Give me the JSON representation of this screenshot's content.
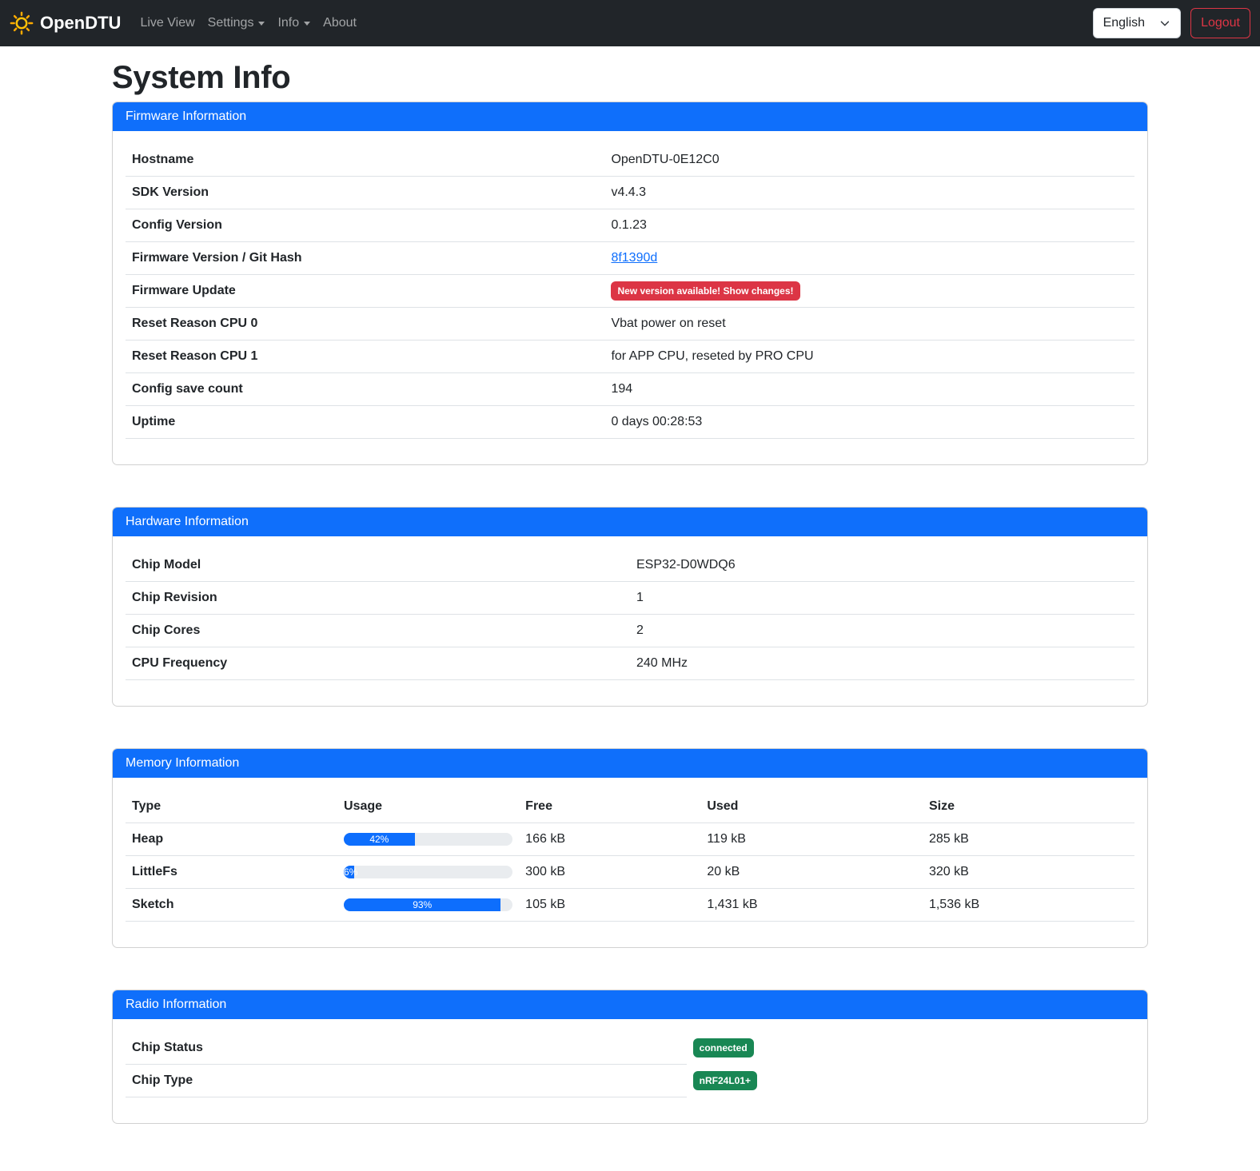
{
  "colors": {
    "primary": "#0f6ffb",
    "progress_fill": "#0d6efd",
    "danger": "#dc3545",
    "success": "#198754",
    "navbar_bg": "#212529",
    "brand_icon_color": "#ffc107"
  },
  "navbar": {
    "brand": "OpenDTU",
    "brand_icon": "sun-icon",
    "items": [
      {
        "label": "Live View",
        "dropdown": false
      },
      {
        "label": "Settings",
        "dropdown": true
      },
      {
        "label": "Info",
        "dropdown": true
      },
      {
        "label": "About",
        "dropdown": false
      }
    ],
    "language_selector": {
      "value": "English"
    },
    "logout_label": "Logout"
  },
  "page_title": "System Info",
  "firmware": {
    "title": "Firmware Information",
    "rows": [
      {
        "label": "Hostname",
        "value": "OpenDTU-0E12C0"
      },
      {
        "label": "SDK Version",
        "value": "v4.4.3"
      },
      {
        "label": "Config Version",
        "value": "0.1.23"
      },
      {
        "label": "Firmware Version / Git Hash",
        "value": "8f1390d",
        "type": "link"
      },
      {
        "label": "Firmware Update",
        "value": "New version available! Show changes!",
        "type": "badge-danger"
      },
      {
        "label": "Reset Reason CPU 0",
        "value": "Vbat power on reset"
      },
      {
        "label": "Reset Reason CPU 1",
        "value": "for APP CPU, reseted by PRO CPU"
      },
      {
        "label": "Config save count",
        "value": "194"
      },
      {
        "label": "Uptime",
        "value": "0 days 00:28:53"
      }
    ]
  },
  "hardware": {
    "title": "Hardware Information",
    "rows": [
      {
        "label": "Chip Model",
        "value": "ESP32-D0WDQ6"
      },
      {
        "label": "Chip Revision",
        "value": "1"
      },
      {
        "label": "Chip Cores",
        "value": "2"
      },
      {
        "label": "CPU Frequency",
        "value": "240 MHz"
      }
    ]
  },
  "memory": {
    "title": "Memory Information",
    "headers": [
      "Type",
      "Usage",
      "Free",
      "Used",
      "Size"
    ],
    "rows": [
      {
        "type": "Heap",
        "usage_pct": 42,
        "usage_label": "42%",
        "free": "166 kB",
        "used": "119 kB",
        "size": "285 kB"
      },
      {
        "type": "LittleFs",
        "usage_pct": 6,
        "usage_label": "6%",
        "free": "300 kB",
        "used": "20 kB",
        "size": "320 kB"
      },
      {
        "type": "Sketch",
        "usage_pct": 93,
        "usage_label": "93%",
        "free": "105 kB",
        "used": "1,431 kB",
        "size": "1,536 kB"
      }
    ]
  },
  "radio": {
    "title": "Radio Information",
    "rows": [
      {
        "label": "Chip Status",
        "badge": "connected"
      },
      {
        "label": "Chip Type",
        "badge": "nRF24L01+"
      }
    ]
  }
}
